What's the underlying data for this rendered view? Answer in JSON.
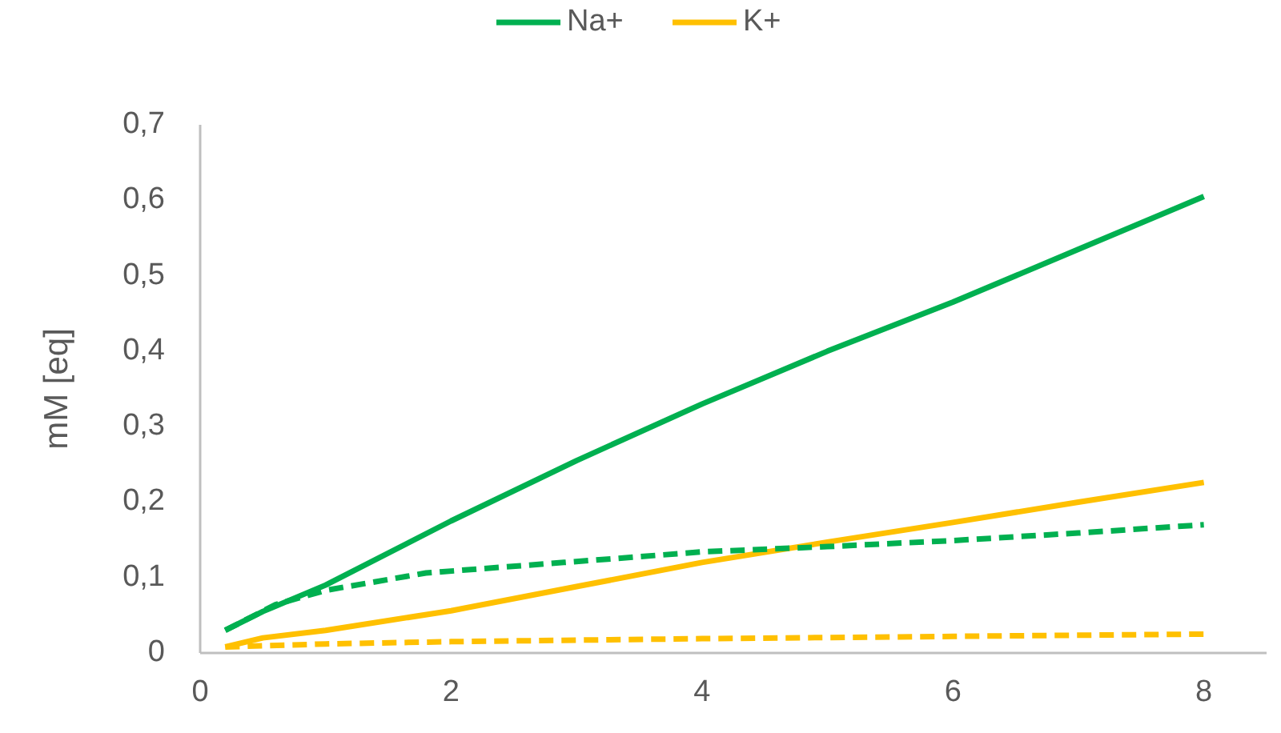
{
  "chart_data": {
    "type": "line",
    "ylabel": "mM [eq]",
    "legend": "top",
    "grid": false,
    "xlim": [
      0,
      8.5
    ],
    "xticks": [
      0,
      2,
      4,
      6,
      8
    ],
    "ylim": [
      0,
      0.7
    ],
    "yticks": [
      0,
      {
        "value": 0.1,
        "label": "0,1"
      },
      {
        "value": 0.2,
        "label": "0,2"
      },
      {
        "value": 0.3,
        "label": "0,3"
      },
      {
        "value": 0.4,
        "label": "0,4"
      },
      {
        "value": 0.5,
        "label": "0,5"
      },
      {
        "value": 0.6,
        "label": "0,6"
      },
      {
        "value": 0.7,
        "label": "0,7"
      }
    ],
    "series": [
      {
        "name": "Na+",
        "color": "#00b050",
        "line_style": "solid",
        "x": [
          0.2,
          0.5,
          1,
          2,
          3,
          4,
          5,
          6,
          7,
          8
        ],
        "values": [
          0.03,
          0.055,
          0.09,
          0.175,
          0.255,
          0.33,
          0.4,
          0.465,
          0.535,
          0.605
        ]
      },
      {
        "name": "K+",
        "color": "#ffc000",
        "line_style": "solid",
        "x": [
          0.2,
          0.5,
          1,
          2,
          3,
          4,
          5,
          6,
          7,
          8
        ],
        "values": [
          0.008,
          0.02,
          0.03,
          0.056,
          0.088,
          0.12,
          0.147,
          0.173,
          0.2,
          0.226
        ]
      },
      {
        "color": "#00b050",
        "line_style": "dashed",
        "x": [
          0.2,
          0.6,
          1,
          1.8,
          2.9,
          4,
          5,
          6,
          7,
          8
        ],
        "values": [
          0.03,
          0.064,
          0.083,
          0.106,
          0.12,
          0.134,
          0.141,
          0.149,
          0.159,
          0.17
        ]
      },
      {
        "color": "#ffc000",
        "line_style": "dashed",
        "x": [
          0.2,
          1,
          2,
          4,
          6,
          8
        ],
        "values": [
          0.008,
          0.012,
          0.015,
          0.019,
          0.022,
          0.025
        ]
      }
    ]
  }
}
